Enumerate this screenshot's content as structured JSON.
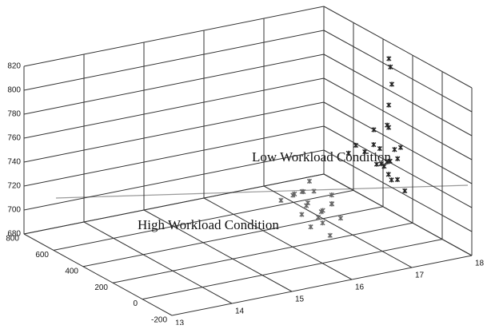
{
  "chart_data": {
    "type": "scatter3d",
    "annotations": [
      "Low Workload Condition",
      "High Workload Condition"
    ],
    "xlim": [
      13,
      18
    ],
    "xticks": [
      13,
      14,
      15,
      16,
      17,
      18
    ],
    "ylim": [
      -200,
      800
    ],
    "yticks": [
      -200,
      0,
      200,
      400,
      600,
      800
    ],
    "zlim": [
      680,
      820
    ],
    "zticks": [
      680,
      700,
      720,
      740,
      760,
      780,
      800,
      820
    ],
    "grid": true,
    "series": [
      {
        "color": "#222222",
        "x": [
          17.4,
          17.5,
          17.6,
          17.3,
          17.5,
          17.7,
          17.4,
          17.6,
          17.5,
          17.3,
          17.6,
          17.8,
          17.5,
          17.4,
          17.7,
          17.6,
          17.5,
          17.4,
          17.9,
          18.0,
          17.9,
          17.8,
          17.6,
          17.5
        ],
        "y": [
          200,
          150,
          250,
          300,
          100,
          180,
          220,
          260,
          140,
          350,
          300,
          200,
          50,
          120,
          240,
          160,
          190,
          280,
          300,
          350,
          320,
          280,
          210,
          170
        ],
        "z": [
          735,
          740,
          730,
          745,
          728,
          738,
          750,
          742,
          725,
          735,
          755,
          745,
          722,
          732,
          760,
          748,
          733,
          740,
          790,
          800,
          810,
          775,
          765,
          738
        ]
      },
      {
        "color": "#666666",
        "x": [
          16.5,
          16.6,
          16.4,
          16.7,
          16.5,
          16.3,
          16.8,
          16.6,
          16.4,
          16.5,
          16.7,
          16.9,
          16.2,
          16.6,
          16.5,
          16.4,
          16.7,
          16.8,
          16.3,
          16.6
        ],
        "y": [
          300,
          250,
          350,
          280,
          200,
          320,
          260,
          380,
          240,
          310,
          220,
          300,
          360,
          270,
          150,
          290,
          340,
          200,
          260,
          330
        ],
        "z": [
          705,
          700,
          710,
          698,
          695,
          712,
          704,
          708,
          690,
          702,
          715,
          700,
          706,
          694,
          688,
          716,
          710,
          696,
          700,
          720
        ]
      }
    ]
  }
}
